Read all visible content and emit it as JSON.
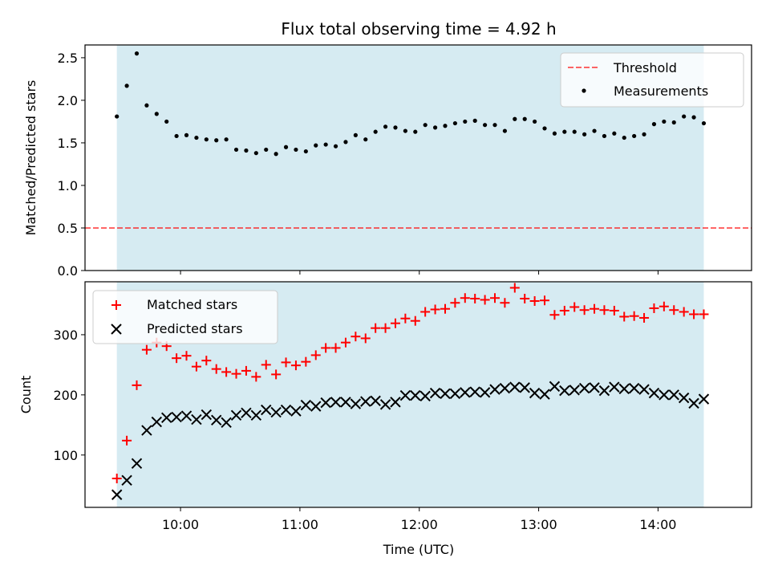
{
  "title": "Flux total observing time = 4.92 h",
  "colors": {
    "shade": "#add8e6",
    "threshold": "#ff0000",
    "measurement": "#000000",
    "matched": "#ff0000",
    "predicted": "#000000"
  },
  "chart_data": [
    {
      "type": "scatter",
      "panel": "top",
      "ylabel": "Matched/Predicted stars",
      "ylim": [
        0,
        2.65
      ],
      "yticks": [
        0,
        0.5,
        1.0,
        1.5,
        2.0,
        2.5
      ],
      "ytick_labels": [
        "0.0",
        "0.5",
        "1.0",
        "1.5",
        "2.0",
        "2.5"
      ],
      "legend": {
        "placement": "top-right",
        "entries": [
          "Threshold",
          "Measurements"
        ]
      },
      "threshold": 0.5,
      "shaded_x": [
        "09:28",
        "14:23"
      ],
      "x": [
        "09:28",
        "09:33",
        "09:38",
        "09:43",
        "09:48",
        "09:53",
        "09:58",
        "10:03",
        "10:08",
        "10:13",
        "10:18",
        "10:23",
        "10:28",
        "10:33",
        "10:38",
        "10:43",
        "10:48",
        "10:53",
        "10:58",
        "11:03",
        "11:08",
        "11:13",
        "11:18",
        "11:23",
        "11:28",
        "11:33",
        "11:38",
        "11:43",
        "11:48",
        "11:53",
        "11:58",
        "12:03",
        "12:08",
        "12:13",
        "12:18",
        "12:23",
        "12:28",
        "12:33",
        "12:38",
        "12:43",
        "12:48",
        "12:53",
        "12:58",
        "13:03",
        "13:08",
        "13:13",
        "13:18",
        "13:23",
        "13:28",
        "13:33",
        "13:38",
        "13:43",
        "13:48",
        "13:53",
        "13:58",
        "14:03",
        "14:08",
        "14:13",
        "14:18",
        "14:23"
      ],
      "series": [
        {
          "name": "Measurements",
          "values": [
            1.81,
            2.17,
            2.55,
            1.94,
            1.84,
            1.75,
            1.58,
            1.59,
            1.56,
            1.54,
            1.53,
            1.54,
            1.42,
            1.41,
            1.38,
            1.42,
            1.37,
            1.45,
            1.42,
            1.4,
            1.47,
            1.48,
            1.46,
            1.51,
            1.59,
            1.54,
            1.63,
            1.69,
            1.68,
            1.64,
            1.63,
            1.71,
            1.68,
            1.7,
            1.73,
            1.75,
            1.76,
            1.71,
            1.71,
            1.64,
            1.78,
            1.78,
            1.75,
            1.67,
            1.61,
            1.63,
            1.63,
            1.6,
            1.64,
            1.58,
            1.61,
            1.56,
            1.58,
            1.6,
            1.72,
            1.75,
            1.74,
            1.81,
            1.8,
            1.73
          ]
        }
      ]
    },
    {
      "type": "scatter",
      "panel": "bottom",
      "xlabel": "Time (UTC)",
      "ylabel": "Count",
      "ylim": [
        13,
        388
      ],
      "yticks": [
        100,
        200,
        300
      ],
      "xticks": [
        "10:00",
        "11:00",
        "12:00",
        "13:00",
        "14:00"
      ],
      "xlim": [
        "09:12",
        "14:47"
      ],
      "legend": {
        "placement": "top-left",
        "entries": [
          "Matched stars",
          "Predicted stars"
        ]
      },
      "x": [
        "09:28",
        "09:33",
        "09:38",
        "09:43",
        "09:48",
        "09:53",
        "09:58",
        "10:03",
        "10:08",
        "10:13",
        "10:18",
        "10:23",
        "10:28",
        "10:33",
        "10:38",
        "10:43",
        "10:48",
        "10:53",
        "10:58",
        "11:03",
        "11:08",
        "11:13",
        "11:18",
        "11:23",
        "11:28",
        "11:33",
        "11:38",
        "11:43",
        "11:48",
        "11:53",
        "11:58",
        "12:03",
        "12:08",
        "12:13",
        "12:18",
        "12:23",
        "12:28",
        "12:33",
        "12:38",
        "12:43",
        "12:48",
        "12:53",
        "12:58",
        "13:03",
        "13:08",
        "13:13",
        "13:18",
        "13:23",
        "13:28",
        "13:33",
        "13:38",
        "13:43",
        "13:48",
        "13:53",
        "13:58",
        "14:03",
        "14:08",
        "14:13",
        "14:18",
        "14:23"
      ],
      "series": [
        {
          "name": "Matched stars",
          "values": [
            61,
            124,
            216,
            275,
            287,
            281,
            261,
            265,
            247,
            257,
            243,
            238,
            235,
            240,
            230,
            250,
            234,
            254,
            249,
            255,
            266,
            278,
            278,
            287,
            297,
            294,
            311,
            311,
            319,
            327,
            323,
            338,
            342,
            343,
            353,
            361,
            360,
            358,
            361,
            353,
            378,
            360,
            356,
            357,
            333,
            340,
            346,
            341,
            343,
            341,
            340,
            330,
            331,
            328,
            344,
            347,
            341,
            338,
            334,
            334
          ]
        },
        {
          "name": "Predicted stars",
          "values": [
            34,
            58,
            86,
            141,
            155,
            162,
            163,
            165,
            159,
            167,
            158,
            154,
            166,
            170,
            166,
            175,
            171,
            175,
            173,
            183,
            181,
            187,
            188,
            188,
            185,
            189,
            190,
            184,
            188,
            199,
            199,
            198,
            203,
            202,
            202,
            204,
            205,
            204,
            209,
            211,
            213,
            212,
            203,
            201,
            214,
            207,
            208,
            211,
            212,
            207,
            213,
            210,
            211,
            209,
            203,
            200,
            200,
            195,
            186,
            193
          ]
        }
      ]
    }
  ]
}
